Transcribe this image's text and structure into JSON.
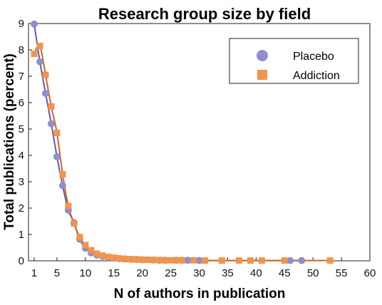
{
  "chart_data": {
    "type": "line",
    "title": "Research group size by field",
    "xlabel": "N of authors in publication",
    "ylabel": "Total publications (percent)",
    "xlim": [
      0,
      60
    ],
    "ylim": [
      0,
      9
    ],
    "xticks": [
      1,
      5,
      10,
      15,
      20,
      25,
      30,
      35,
      40,
      45,
      50,
      55,
      60
    ],
    "yticks": [
      0,
      1,
      2,
      3,
      4,
      5,
      6,
      7,
      8,
      9
    ],
    "grid": false,
    "legend_position": "top-right",
    "series": [
      {
        "name": "Placebo",
        "marker": "circle",
        "color": "#8e8ed0",
        "line_color": "#5b5bb5",
        "x": [
          1,
          2,
          3,
          4,
          5,
          6,
          7,
          8,
          9,
          10,
          11,
          12,
          13,
          14,
          15,
          16,
          17,
          18,
          19,
          20,
          22,
          23,
          24,
          26,
          27,
          28,
          30,
          46,
          48
        ],
        "y": [
          8.98,
          7.55,
          6.35,
          5.2,
          3.95,
          2.85,
          1.92,
          1.45,
          0.82,
          0.48,
          0.3,
          0.22,
          0.17,
          0.13,
          0.1,
          0.08,
          0.07,
          0.06,
          0.05,
          0.04,
          0.03,
          0.02,
          0.02,
          0.02,
          0.02,
          0.02,
          0.01,
          0.01,
          0.01
        ]
      },
      {
        "name": "Addiction",
        "marker": "square",
        "color": "#f0944e",
        "line_color": "#d4651a",
        "x": [
          1,
          2,
          3,
          4,
          5,
          6,
          7,
          8,
          9,
          10,
          11,
          12,
          13,
          14,
          15,
          16,
          17,
          18,
          19,
          20,
          21,
          22,
          23,
          24,
          25,
          26,
          27,
          29,
          31,
          34,
          37,
          39,
          41,
          45,
          53
        ],
        "y": [
          7.85,
          8.15,
          7.05,
          5.85,
          4.85,
          3.28,
          2.08,
          1.42,
          0.9,
          0.6,
          0.4,
          0.27,
          0.2,
          0.15,
          0.12,
          0.09,
          0.07,
          0.06,
          0.05,
          0.04,
          0.04,
          0.03,
          0.03,
          0.02,
          0.02,
          0.02,
          0.02,
          0.02,
          0.01,
          0.01,
          0.01,
          0.01,
          0.01,
          0.01,
          0.01
        ]
      }
    ]
  }
}
